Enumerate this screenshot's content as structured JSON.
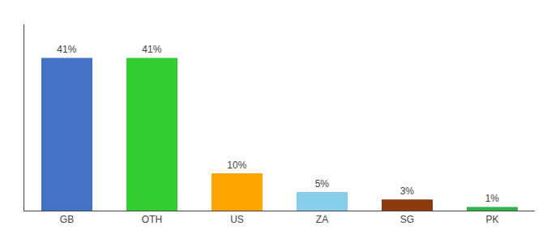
{
  "chart_data": {
    "type": "bar",
    "categories": [
      "GB",
      "OTH",
      "US",
      "ZA",
      "SG",
      "PK"
    ],
    "values": [
      41,
      41,
      10,
      5,
      3,
      1
    ],
    "value_labels": [
      "41%",
      "41%",
      "10%",
      "5%",
      "3%",
      "1%"
    ],
    "colors": [
      "#4472C4",
      "#33CC33",
      "#FFA500",
      "#87CEEB",
      "#8B3A0F",
      "#2DB34A"
    ],
    "ylim": [
      0,
      50
    ],
    "data_labels": true,
    "tick_labels": "x",
    "grid": false
  }
}
